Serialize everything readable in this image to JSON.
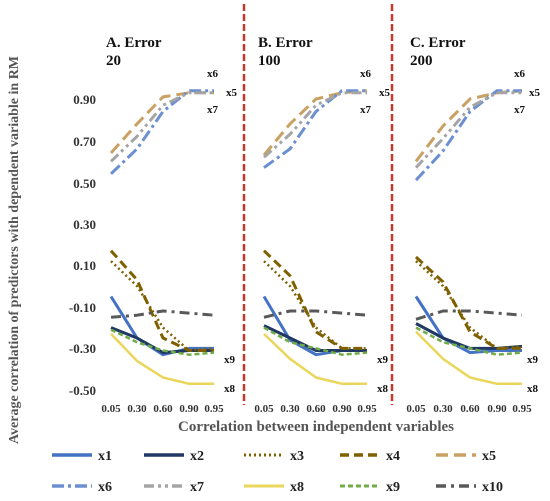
{
  "chart_data": {
    "type": "line",
    "ylabel": "Average correlation of predictors with dependent variable in RM",
    "xlabel": "Correlation between independent variables",
    "categories": [
      "0.05",
      "0.30",
      "0.60",
      "0.90",
      "0.95"
    ],
    "yticks": [
      "0.90",
      "0.70",
      "0.50",
      "0.30",
      "0.10",
      "-0.10",
      "-0.30",
      "-0.50"
    ],
    "ylim": [
      -0.5,
      1.0
    ],
    "grid": false,
    "legend_position": "bottom",
    "series_styles": [
      {
        "name": "x1",
        "color": "#4472c4",
        "dash": "",
        "width": 3
      },
      {
        "name": "x2",
        "color": "#203864",
        "dash": "",
        "width": 3
      },
      {
        "name": "x3",
        "color": "#7f6000",
        "dash": "2 3",
        "width": 2.5
      },
      {
        "name": "x4",
        "color": "#7f6000",
        "dash": "9 5",
        "width": 3
      },
      {
        "name": "x5",
        "color": "#c9a163",
        "dash": "12 6",
        "width": 3
      },
      {
        "name": "x6",
        "color": "#6b8fd0",
        "dash": "12 4 3 4",
        "width": 3
      },
      {
        "name": "x7",
        "color": "#a5a5a5",
        "dash": "10 4 3 4 3 4",
        "width": 3
      },
      {
        "name": "x8",
        "color": "#e9d65a",
        "dash": "",
        "width": 2.5
      },
      {
        "name": "x9",
        "color": "#70ad47",
        "dash": "5 3",
        "width": 2.5
      },
      {
        "name": "x10",
        "color": "#595959",
        "dash": "10 5 3 5",
        "width": 3
      }
    ],
    "panels": [
      {
        "title_line1": "A. Error",
        "title_line2": "20",
        "series": [
          {
            "name": "x1",
            "values": [
              -0.05,
              -0.25,
              -0.33,
              -0.3,
              -0.3
            ]
          },
          {
            "name": "x2",
            "values": [
              -0.2,
              -0.25,
              -0.32,
              -0.31,
              -0.31
            ]
          },
          {
            "name": "x3",
            "values": [
              0.12,
              0.0,
              -0.2,
              -0.31,
              -0.3
            ]
          },
          {
            "name": "x4",
            "values": [
              0.17,
              0.03,
              -0.25,
              -0.31,
              -0.31
            ]
          },
          {
            "name": "x5",
            "values": [
              0.64,
              0.78,
              0.91,
              0.93,
              0.93
            ]
          },
          {
            "name": "x6",
            "values": [
              0.54,
              0.66,
              0.84,
              0.94,
              0.94
            ]
          },
          {
            "name": "x7",
            "values": [
              0.6,
              0.72,
              0.87,
              0.93,
              0.93
            ]
          },
          {
            "name": "x8",
            "values": [
              -0.23,
              -0.36,
              -0.44,
              -0.47,
              -0.47
            ]
          },
          {
            "name": "x9",
            "values": [
              -0.21,
              -0.27,
              -0.31,
              -0.33,
              -0.32
            ]
          },
          {
            "name": "x10",
            "values": [
              -0.15,
              -0.14,
              -0.12,
              -0.13,
              -0.14
            ]
          }
        ],
        "annotations": [
          "x6",
          "x5",
          "x7",
          "x9",
          "x8"
        ]
      },
      {
        "title_line1": "B. Error",
        "title_line2": "100",
        "series": [
          {
            "name": "x1",
            "values": [
              -0.05,
              -0.26,
              -0.33,
              -0.31,
              -0.31
            ]
          },
          {
            "name": "x2",
            "values": [
              -0.19,
              -0.25,
              -0.31,
              -0.31,
              -0.31
            ]
          },
          {
            "name": "x3",
            "values": [
              0.12,
              0.0,
              -0.2,
              -0.3,
              -0.3
            ]
          },
          {
            "name": "x4",
            "values": [
              0.17,
              0.05,
              -0.22,
              -0.3,
              -0.3
            ]
          },
          {
            "name": "x5",
            "values": [
              0.63,
              0.78,
              0.9,
              0.93,
              0.94
            ]
          },
          {
            "name": "x6",
            "values": [
              0.57,
              0.66,
              0.84,
              0.94,
              0.94
            ]
          },
          {
            "name": "x7",
            "values": [
              0.62,
              0.73,
              0.87,
              0.93,
              0.93
            ]
          },
          {
            "name": "x8",
            "values": [
              -0.23,
              -0.35,
              -0.44,
              -0.47,
              -0.47
            ]
          },
          {
            "name": "x9",
            "values": [
              -0.2,
              -0.27,
              -0.3,
              -0.33,
              -0.32
            ]
          },
          {
            "name": "x10",
            "values": [
              -0.15,
              -0.12,
              -0.12,
              -0.13,
              -0.14
            ]
          }
        ],
        "annotations": [
          "x6",
          "x5",
          "x7",
          "x9",
          "x8"
        ]
      },
      {
        "title_line1": "C. Error",
        "title_line2": "200",
        "series": [
          {
            "name": "x1",
            "values": [
              -0.05,
              -0.25,
              -0.32,
              -0.31,
              -0.31
            ]
          },
          {
            "name": "x2",
            "values": [
              -0.18,
              -0.25,
              -0.3,
              -0.3,
              -0.29
            ]
          },
          {
            "name": "x3",
            "values": [
              0.12,
              0.0,
              -0.2,
              -0.3,
              -0.29
            ]
          },
          {
            "name": "x4",
            "values": [
              0.14,
              0.02,
              -0.22,
              -0.3,
              -0.3
            ]
          },
          {
            "name": "x5",
            "values": [
              0.6,
              0.77,
              0.9,
              0.93,
              0.94
            ]
          },
          {
            "name": "x6",
            "values": [
              0.51,
              0.65,
              0.84,
              0.94,
              0.94
            ]
          },
          {
            "name": "x7",
            "values": [
              0.57,
              0.71,
              0.86,
              0.93,
              0.93
            ]
          },
          {
            "name": "x8",
            "values": [
              -0.22,
              -0.35,
              -0.44,
              -0.47,
              -0.47
            ]
          },
          {
            "name": "x9",
            "values": [
              -0.2,
              -0.27,
              -0.3,
              -0.33,
              -0.32
            ]
          },
          {
            "name": "x10",
            "values": [
              -0.16,
              -0.12,
              -0.12,
              -0.13,
              -0.14
            ]
          }
        ],
        "annotations": [
          "x6",
          "x5",
          "x7",
          "x9",
          "x8"
        ]
      }
    ]
  }
}
